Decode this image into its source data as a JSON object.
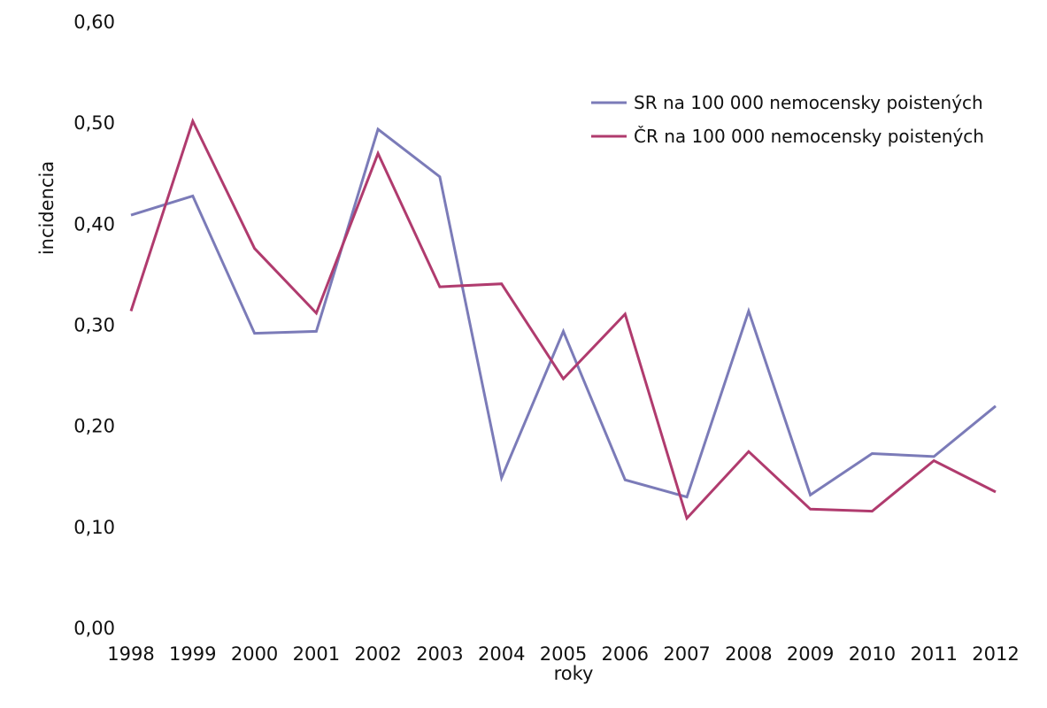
{
  "chart_data": {
    "type": "line",
    "title": "",
    "xlabel": "roky",
    "ylabel": "incidencia",
    "x": [
      "1998",
      "1999",
      "2000",
      "2001",
      "2002",
      "2003",
      "2004",
      "2005",
      "2006",
      "2007",
      "2008",
      "2009",
      "2010",
      "2011",
      "2012"
    ],
    "y_ticks": [
      "0,00",
      "0,10",
      "0,20",
      "0,30",
      "0,40",
      "0,50",
      "0,60"
    ],
    "ylim": [
      0,
      0.6
    ],
    "grid": false,
    "legend_position": "top-right",
    "series": [
      {
        "name": "SR na 100 000 nemocensky poistených",
        "color": "#7b7bb8",
        "values": [
          0.409,
          0.428,
          0.292,
          0.294,
          0.494,
          0.447,
          0.149,
          0.294,
          0.147,
          0.13,
          0.314,
          0.132,
          0.173,
          0.17,
          0.22
        ]
      },
      {
        "name": "ČR na 100 000 nemocensky poistených",
        "color": "#b03b6e",
        "values": [
          0.314,
          0.502,
          0.376,
          0.312,
          0.47,
          0.338,
          0.341,
          0.247,
          0.311,
          0.109,
          0.175,
          0.118,
          0.116,
          0.166,
          0.135
        ]
      }
    ]
  }
}
